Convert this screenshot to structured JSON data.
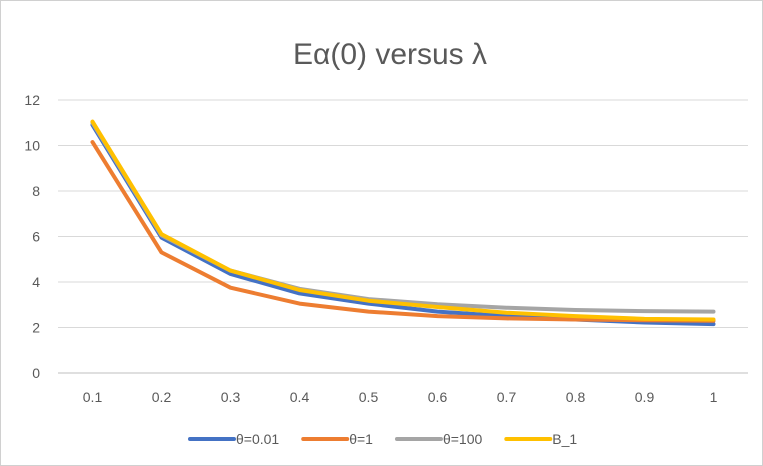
{
  "chart_data": {
    "type": "line",
    "title": "Eα(0) versus λ",
    "xlabel": "",
    "ylabel": "",
    "categories": [
      "0.1",
      "0.2",
      "0.3",
      "0.4",
      "0.5",
      "0.6",
      "0.7",
      "0.8",
      "0.9",
      "1"
    ],
    "ylim": [
      0,
      12
    ],
    "yticks": [
      "0",
      "2",
      "4",
      "6",
      "8",
      "10",
      "12"
    ],
    "grid": true,
    "legend_position": "bottom",
    "series": [
      {
        "name": "θ=0.01",
        "color": "#4472C4",
        "values": [
          10.9,
          5.95,
          4.35,
          3.5,
          3.05,
          2.7,
          2.5,
          2.35,
          2.22,
          2.15
        ]
      },
      {
        "name": "θ=1",
        "color": "#ED7D31",
        "values": [
          10.15,
          5.3,
          3.75,
          3.05,
          2.7,
          2.5,
          2.4,
          2.35,
          2.32,
          2.3
        ]
      },
      {
        "name": "θ=100",
        "color": "#A5A5A5",
        "values": [
          11.0,
          6.05,
          4.5,
          3.7,
          3.25,
          3.02,
          2.87,
          2.77,
          2.72,
          2.7
        ]
      },
      {
        "name": "B_1",
        "color": "#FFC000",
        "values": [
          11.05,
          6.1,
          4.5,
          3.65,
          3.18,
          2.9,
          2.65,
          2.5,
          2.38,
          2.35
        ]
      }
    ]
  }
}
